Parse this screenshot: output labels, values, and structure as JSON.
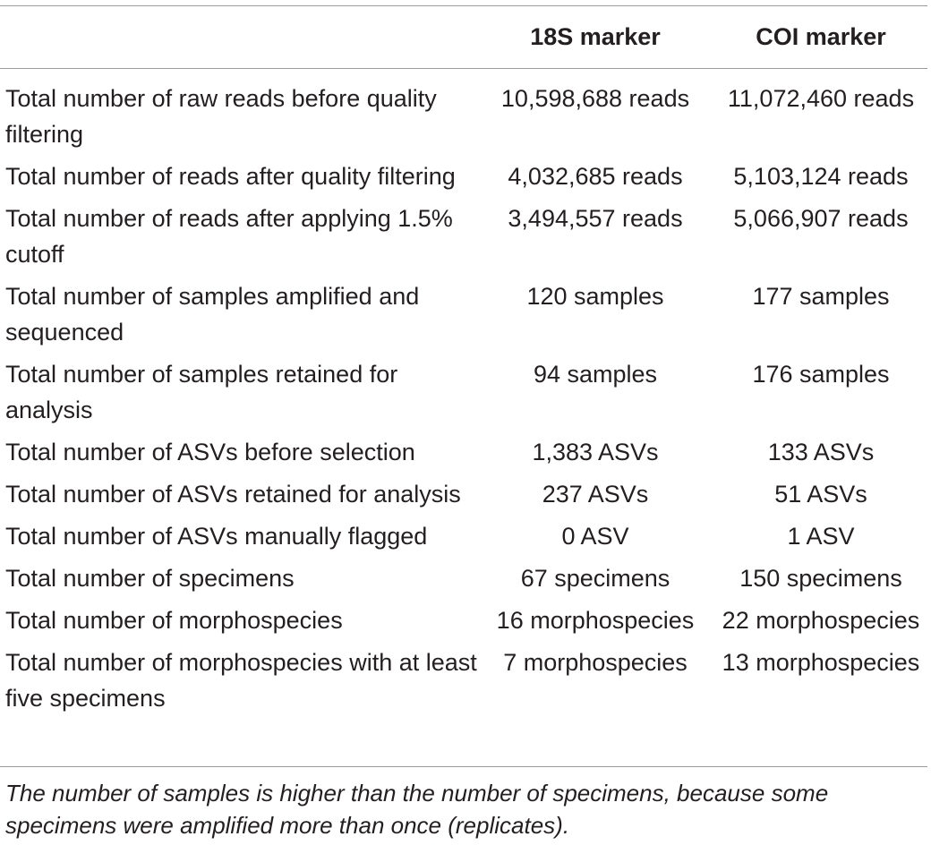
{
  "table": {
    "header": {
      "blank": "",
      "col_18s": "18S marker",
      "col_coi": "COI marker"
    },
    "rows": [
      {
        "label": "Total number of raw reads before quality filtering",
        "v18s": "10,598,688 reads",
        "vcoi": "11,072,460 reads"
      },
      {
        "label": "Total number of reads after quality filtering",
        "v18s": "4,032,685 reads",
        "vcoi": "5,103,124 reads"
      },
      {
        "label": "Total number of reads after applying 1.5% cutoff",
        "v18s": "3,494,557 reads",
        "vcoi": "5,066,907 reads"
      },
      {
        "label": "Total number of samples amplified and sequenced",
        "v18s": "120 samples",
        "vcoi": "177 samples"
      },
      {
        "label": "Total number of samples retained for analysis",
        "v18s": "94 samples",
        "vcoi": "176 samples"
      },
      {
        "label": "Total number of ASVs before selection",
        "v18s": "1,383 ASVs",
        "vcoi": "133 ASVs"
      },
      {
        "label": "Total number of ASVs retained for analysis",
        "v18s": "237 ASVs",
        "vcoi": "51 ASVs"
      },
      {
        "label": "Total number of ASVs manually flagged",
        "v18s": "0 ASV",
        "vcoi": "1 ASV"
      },
      {
        "label": "Total number of specimens",
        "v18s": "67 specimens",
        "vcoi": "150 specimens"
      },
      {
        "label": "Total number of morphospecies",
        "v18s": "16 morphospecies",
        "vcoi": "22 morphospecies"
      },
      {
        "label": "Total number of morphospecies with at least five specimens",
        "v18s": "7 morphospecies",
        "vcoi": "13 morphospecies"
      }
    ],
    "footnote": "The number of samples is higher than the number of specimens, because some specimens were amplified more than once (replicates)."
  }
}
